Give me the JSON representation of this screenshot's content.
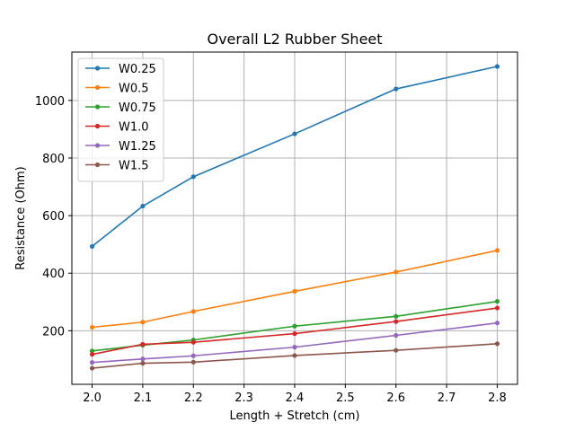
{
  "chart_data": {
    "type": "line",
    "title": "Overall L2 Rubber Sheet",
    "xlabel": "Length + Stretch (cm)",
    "ylabel": "Resistance (Ohm)",
    "x": [
      2.0,
      2.1,
      2.2,
      2.4,
      2.6,
      2.8
    ],
    "xlim": [
      1.96,
      2.84
    ],
    "ylim": [
      14,
      1168
    ],
    "xticks": [
      2.0,
      2.1,
      2.2,
      2.3,
      2.4,
      2.5,
      2.6,
      2.7,
      2.8
    ],
    "xtick_labels": [
      "2.0",
      "2.1",
      "2.2",
      "2.3",
      "2.4",
      "2.5",
      "2.6",
      "2.7",
      "2.8"
    ],
    "yticks": [
      200,
      400,
      600,
      800,
      1000
    ],
    "ytick_labels": [
      "200",
      "400",
      "600",
      "800",
      "1000"
    ],
    "grid": true,
    "legend_position": "top-left",
    "series": [
      {
        "name": "W0.25",
        "color": "#1f77b4",
        "values": [
          493,
          633,
          735,
          884,
          1040,
          1118
        ]
      },
      {
        "name": "W0.5",
        "color": "#ff7f0e",
        "values": [
          212,
          230,
          267,
          337,
          404,
          479
        ]
      },
      {
        "name": "W0.75",
        "color": "#2ca02c",
        "values": [
          130,
          150,
          168,
          216,
          250,
          302
        ]
      },
      {
        "name": "W1.0",
        "color": "#d62728",
        "values": [
          118,
          153,
          160,
          190,
          232,
          279
        ]
      },
      {
        "name": "W1.25",
        "color": "#9467bd",
        "values": [
          90,
          102,
          113,
          143,
          184,
          227
        ]
      },
      {
        "name": "W1.5",
        "color": "#8c564b",
        "values": [
          70,
          87,
          91,
          114,
          132,
          155
        ]
      }
    ]
  }
}
